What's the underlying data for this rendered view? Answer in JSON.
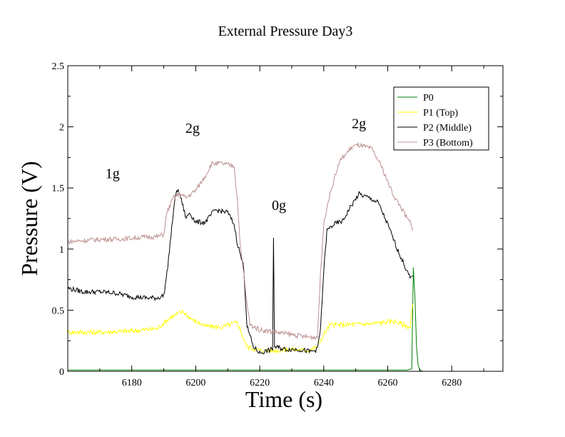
{
  "chart_data": {
    "type": "line",
    "title": "External Pressure Day3",
    "xlabel": "Time (s)",
    "ylabel": "Pressure (V)",
    "xlim": [
      6160,
      6296
    ],
    "ylim": [
      0,
      2.5
    ],
    "xticks": [
      6180,
      6200,
      6220,
      6240,
      6260,
      6280
    ],
    "yticks": [
      0,
      0.5,
      1,
      1.5,
      2,
      2.5
    ],
    "ytick_labels": [
      "0",
      "0.5",
      "1",
      "1.5",
      "2",
      "2.5"
    ],
    "legend_position": "top-right",
    "grid": false,
    "annotations": [
      {
        "text": "1g",
        "x": 6174,
        "y": 1.58
      },
      {
        "text": "2g",
        "x": 6199,
        "y": 1.95
      },
      {
        "text": "0g",
        "x": 6226,
        "y": 1.32
      },
      {
        "text": "2g",
        "x": 6251,
        "y": 1.99
      }
    ],
    "series": [
      {
        "name": "P0",
        "color": "#008000",
        "x": [
          6160,
          6200,
          6240,
          6266,
          6267.5,
          6268,
          6268.5,
          6269,
          6269.5,
          6270,
          6271
        ],
        "y": [
          0.01,
          0.01,
          0.01,
          0.01,
          0.02,
          0.85,
          0.6,
          0.2,
          0.05,
          0.01,
          0.0
        ]
      },
      {
        "name": "P1 (Top)",
        "color": "#ffff00",
        "x": [
          6160,
          6170,
          6180,
          6188,
          6192,
          6196,
          6199,
          6203,
          6208,
          6213,
          6216,
          6220,
          6225,
          6230,
          6235,
          6238,
          6240,
          6242,
          6246,
          6255,
          6262,
          6267,
          6267.8
        ],
        "y": [
          0.32,
          0.32,
          0.33,
          0.35,
          0.44,
          0.49,
          0.42,
          0.37,
          0.36,
          0.4,
          0.2,
          0.17,
          0.17,
          0.18,
          0.17,
          0.2,
          0.3,
          0.38,
          0.38,
          0.39,
          0.41,
          0.36,
          0.55
        ]
      },
      {
        "name": "P2 (Middle)",
        "color": "#000000",
        "x": [
          6160,
          6165,
          6170,
          6175,
          6180,
          6185,
          6188,
          6190,
          6191,
          6193,
          6194,
          6195,
          6197,
          6198,
          6200,
          6203,
          6206,
          6210,
          6212,
          6213,
          6215,
          6216,
          6218,
          6220,
          6224,
          6224.3,
          6224.6,
          6228,
          6232,
          6236,
          6238,
          6239,
          6240,
          6241,
          6243,
          6246,
          6248,
          6251,
          6254,
          6257,
          6260,
          6263,
          6265,
          6267,
          6267.8
        ],
        "y": [
          0.68,
          0.65,
          0.65,
          0.64,
          0.61,
          0.6,
          0.6,
          0.62,
          0.8,
          1.3,
          1.49,
          1.45,
          1.25,
          1.3,
          1.22,
          1.22,
          1.32,
          1.3,
          1.2,
          1.05,
          0.85,
          0.37,
          0.2,
          0.15,
          0.18,
          1.1,
          0.2,
          0.18,
          0.18,
          0.16,
          0.18,
          0.35,
          0.82,
          1.15,
          1.2,
          1.23,
          1.33,
          1.45,
          1.42,
          1.38,
          1.2,
          1.0,
          0.88,
          0.76,
          0.78
        ]
      },
      {
        "name": "P3 (Bottom)",
        "color": "#bc8f8f",
        "x": [
          6160,
          6165,
          6170,
          6175,
          6180,
          6185,
          6188,
          6190,
          6191,
          6193,
          6195,
          6197,
          6200,
          6203,
          6205,
          6208,
          6212,
          6213,
          6214,
          6215,
          6216,
          6217,
          6220,
          6225,
          6230,
          6235,
          6238,
          6239,
          6240,
          6241,
          6243,
          6245,
          6247,
          6249,
          6251,
          6255,
          6258,
          6260,
          6262,
          6264,
          6266,
          6267,
          6267.8
        ],
        "y": [
          1.06,
          1.07,
          1.08,
          1.08,
          1.09,
          1.1,
          1.1,
          1.12,
          1.3,
          1.42,
          1.45,
          1.42,
          1.48,
          1.6,
          1.7,
          1.7,
          1.68,
          1.4,
          1.0,
          0.8,
          0.55,
          0.38,
          0.34,
          0.32,
          0.3,
          0.28,
          0.28,
          0.8,
          1.2,
          1.35,
          1.55,
          1.72,
          1.78,
          1.84,
          1.85,
          1.82,
          1.68,
          1.55,
          1.43,
          1.35,
          1.25,
          1.22,
          1.15
        ]
      }
    ]
  }
}
